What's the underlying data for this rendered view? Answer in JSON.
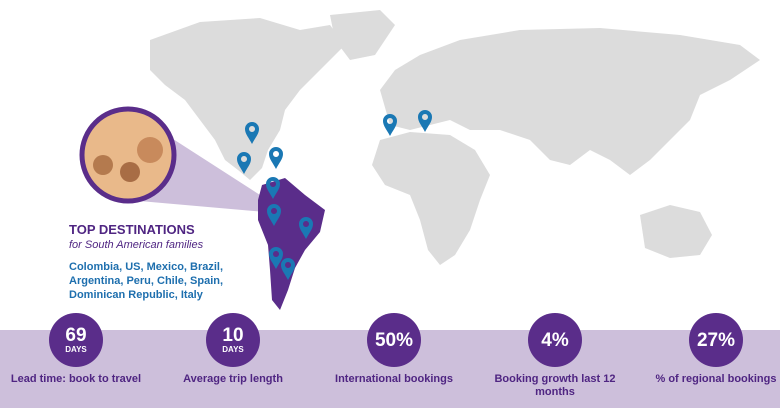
{
  "colors": {
    "accent": "#5a2d8a",
    "pin": "#1a78b4",
    "land": "#dcdcdc",
    "highlight": "#5a2d8a",
    "band": "#cdbfdb"
  },
  "destinations": {
    "title": "TOP DESTINATIONS",
    "subtitle": "for South American families",
    "list": "Colombia, US, Mexico, Brazil, Argentina, Peru, Chile, Spain, Dominican Republic, Italy"
  },
  "stats": [
    {
      "value": "69",
      "unit": "DAYS",
      "label": "Lead time: book to travel"
    },
    {
      "value": "10",
      "unit": "DAYS",
      "label": "Average trip length"
    },
    {
      "value": "50%",
      "unit": "",
      "label": "International bookings"
    },
    {
      "value": "4%",
      "unit": "",
      "label": "Booking growth last 12 months"
    },
    {
      "value": "27%",
      "unit": "",
      "label": "% of regional bookings"
    }
  ],
  "icons": {
    "pin": "map-pin-icon",
    "photo": "family-photo"
  }
}
